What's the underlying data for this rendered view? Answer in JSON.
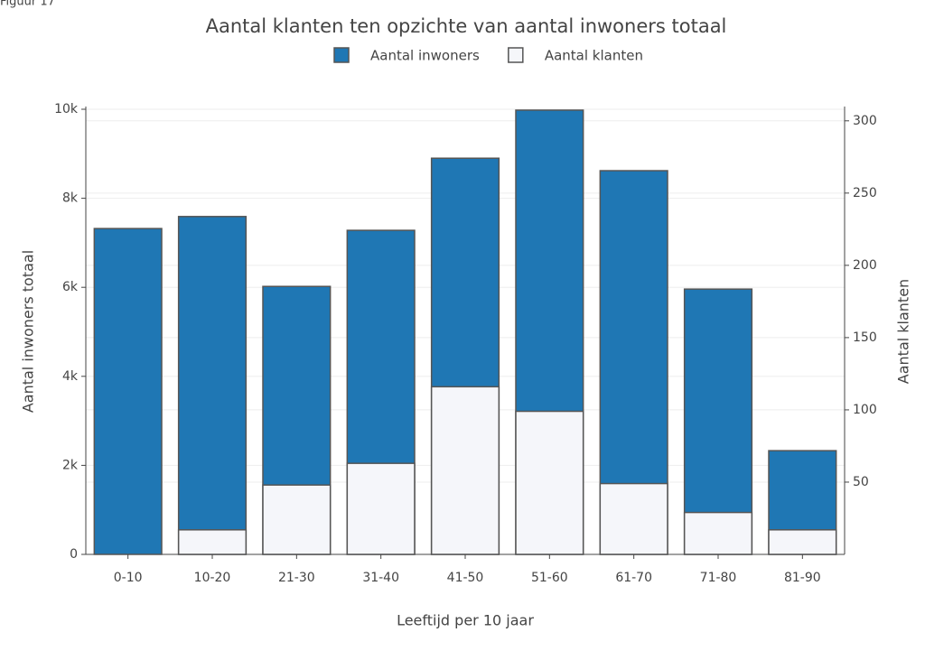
{
  "chart_data": {
    "type": "bar",
    "caption": "Figuur 17",
    "title": "Aantal klanten ten opzichte van aantal inwoners totaal",
    "x_label": "Leeftijd per 10 jaar",
    "y_label": "Aantal inwoners totaal",
    "y2_label": "Aantal klanten",
    "categories": [
      "0-10",
      "10-20",
      "21-30",
      "31-40",
      "41-50",
      "51-60",
      "61-70",
      "71-80",
      "81-90"
    ],
    "series": [
      {
        "name": "Aantal inwoners",
        "color": "#1f77b4",
        "values": [
          7320,
          7590,
          6020,
          7280,
          8900,
          9980,
          8620,
          5960,
          2330
        ]
      },
      {
        "name": "Aantal klanten",
        "color": "#f5f6fa",
        "axis": "y2",
        "values": [
          0,
          17,
          48,
          63,
          116,
          99,
          49,
          29,
          17
        ]
      }
    ],
    "ylim": [
      0,
      10000
    ],
    "yticks": [
      0,
      {
        "value": 2000,
        "label": "2k"
      },
      {
        "value": 4000,
        "label": "4k"
      },
      {
        "value": 6000,
        "label": "6k"
      },
      {
        "value": 8000,
        "label": "8k"
      },
      {
        "value": 10000,
        "label": "10k"
      }
    ],
    "y2lim": [
      0,
      308
    ],
    "y2ticks": [
      50,
      100,
      150,
      200,
      250,
      300
    ],
    "grid": true
  }
}
